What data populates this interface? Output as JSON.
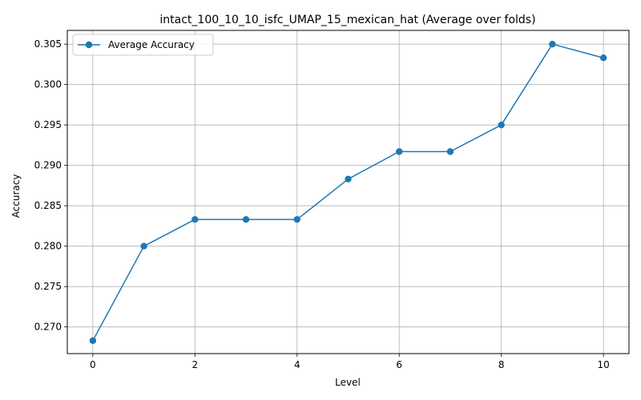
{
  "chart_data": {
    "type": "line",
    "title": "intact_100_10_10_isfc_UMAP_15_mexican_hat (Average over folds)",
    "xlabel": "Level",
    "ylabel": "Accuracy",
    "x": [
      0,
      1,
      2,
      3,
      4,
      5,
      6,
      7,
      8,
      9,
      10
    ],
    "series": [
      {
        "name": "Average Accuracy",
        "color": "#1f77b4",
        "values": [
          0.2683,
          0.28,
          0.2833,
          0.2833,
          0.2833,
          0.2883,
          0.2917,
          0.2917,
          0.295,
          0.305,
          0.3033
        ]
      }
    ],
    "xlim": [
      -0.5,
      10.5
    ],
    "ylim": [
      0.2667,
      0.3067
    ],
    "xticks": [
      0,
      2,
      4,
      6,
      8,
      10
    ],
    "xtick_labels": [
      "0",
      "2",
      "4",
      "6",
      "8",
      "10"
    ],
    "yticks": [
      0.27,
      0.275,
      0.28,
      0.285,
      0.29,
      0.295,
      0.3,
      0.305
    ],
    "ytick_labels": [
      "0.270",
      "0.275",
      "0.280",
      "0.285",
      "0.290",
      "0.295",
      "0.300",
      "0.305"
    ],
    "grid": true,
    "legend_position": "top-left"
  }
}
